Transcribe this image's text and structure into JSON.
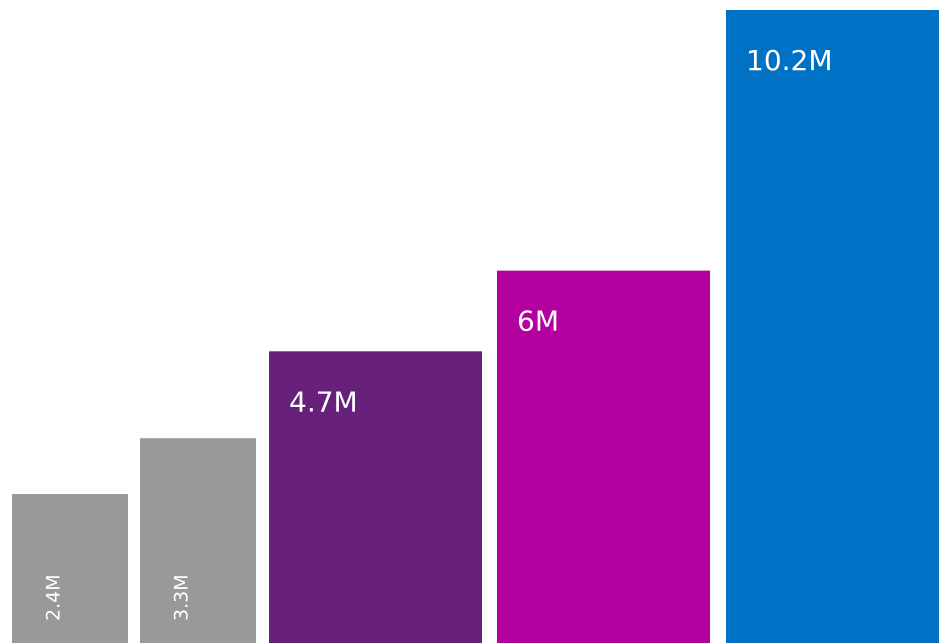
{
  "chart_data": {
    "type": "bar",
    "values": [
      2.4,
      3.3,
      4.7,
      6,
      10.2
    ],
    "value_labels": [
      "2.4M",
      "3.3M",
      "4.7M",
      "6M",
      "10.2M"
    ],
    "colors": [
      "#999999",
      "#999999",
      "#68217a",
      "#b4009e",
      "#0072c6"
    ]
  }
}
